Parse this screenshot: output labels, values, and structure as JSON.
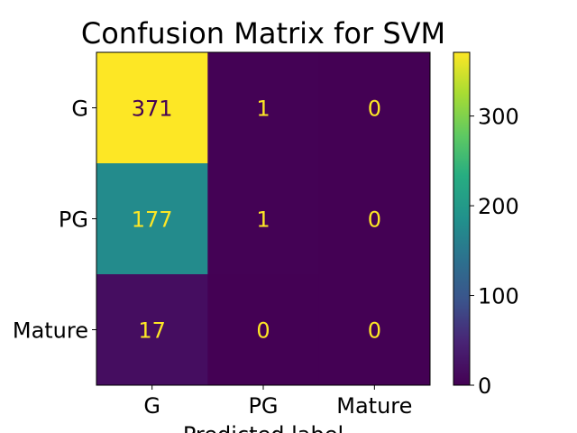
{
  "chart_data": {
    "type": "heatmap",
    "title": "Confusion Matrix for SVM",
    "xlabel": "Predicted label",
    "ylabel": "",
    "x_categories": [
      "G",
      "PG",
      "Mature"
    ],
    "y_categories": [
      "G",
      "PG",
      "Mature"
    ],
    "values": [
      [
        371,
        1,
        0
      ],
      [
        177,
        1,
        0
      ],
      [
        17,
        0,
        0
      ]
    ],
    "colormap": "viridis",
    "colorbar": {
      "range": [
        0,
        371
      ],
      "ticks": [
        0,
        100,
        200,
        300
      ]
    },
    "colors": {
      "text_on_dark": "#fde725",
      "text_on_light": "#440154"
    }
  }
}
